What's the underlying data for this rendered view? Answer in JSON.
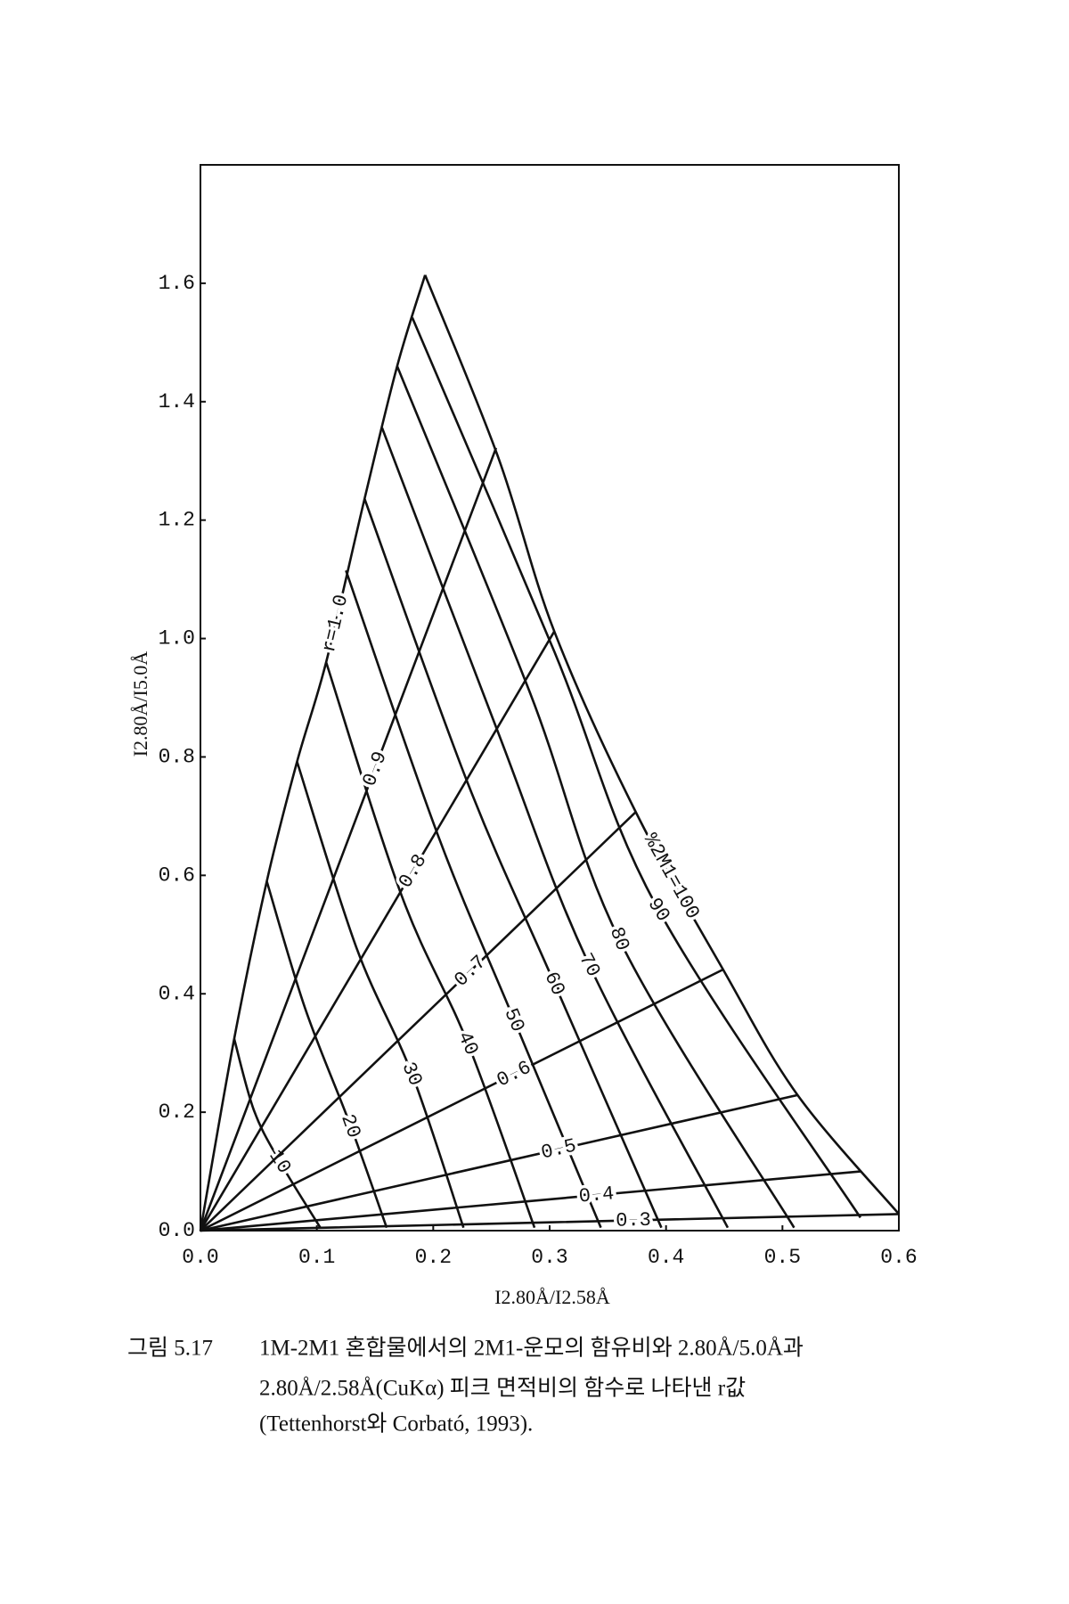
{
  "chart_data": {
    "type": "line",
    "x_label": "I2.80Å/I2.58Å",
    "y_label": "I2.80Å/I5.0Å",
    "xlim": [
      0,
      0.6
    ],
    "ylim": [
      0,
      1.8
    ],
    "xticks": [
      {
        "value": 0,
        "label": "0.0"
      },
      {
        "value": 0.1,
        "label": "0.1"
      },
      {
        "value": 0.2,
        "label": "0.2"
      },
      {
        "value": 0.3,
        "label": "0.3"
      },
      {
        "value": 0.4,
        "label": "0.4"
      },
      {
        "value": 0.5,
        "label": "0.5"
      },
      {
        "value": 0.6,
        "label": "0.6"
      }
    ],
    "yticks": [
      {
        "value": 0,
        "label": "0.0"
      },
      {
        "value": 0.2,
        "label": "0.2"
      },
      {
        "value": 0.4,
        "label": "0.4"
      },
      {
        "value": 0.6,
        "label": "0.6"
      },
      {
        "value": 0.8,
        "label": "0.8"
      },
      {
        "value": 1.0,
        "label": "1.0"
      },
      {
        "value": 1.2,
        "label": "1.2"
      },
      {
        "value": 1.4,
        "label": "1.4"
      },
      {
        "value": 1.6,
        "label": "1.6"
      }
    ],
    "color": "#111111",
    "series": [
      {
        "name": "10",
        "x": [
          0.029,
          0.046,
          0.068,
          0.103
        ],
        "values": [
          0.324,
          0.203,
          0.117,
          0.005
        ]
      },
      {
        "name": "20",
        "x": [
          0.057,
          0.09,
          0.129,
          0.16
        ],
        "values": [
          0.59,
          0.375,
          0.177,
          0.005
        ]
      },
      {
        "name": "30",
        "x": [
          0.083,
          0.134,
          0.182,
          0.226
        ],
        "values": [
          0.792,
          0.478,
          0.263,
          0.005
        ]
      },
      {
        "name": "40",
        "x": [
          0.108,
          0.173,
          0.23,
          0.287
        ],
        "values": [
          0.96,
          0.565,
          0.315,
          0.005
        ]
      },
      {
        "name": "50",
        "x": [
          0.125,
          0.204,
          0.269,
          0.344
        ],
        "values": [
          1.115,
          0.668,
          0.358,
          0.005
        ]
      },
      {
        "name": "60",
        "x": [
          0.141,
          0.23,
          0.304,
          0.396
        ],
        "values": [
          1.236,
          0.754,
          0.418,
          0.005
        ]
      },
      {
        "name": "70",
        "x": [
          0.156,
          0.256,
          0.333,
          0.453
        ],
        "values": [
          1.356,
          0.84,
          0.453,
          0.005
        ]
      },
      {
        "name": "80",
        "x": [
          0.169,
          0.283,
          0.361,
          0.51
        ],
        "values": [
          1.46,
          0.909,
          0.487,
          0.005
        ]
      },
      {
        "name": "90",
        "x": [
          0.182,
          0.304,
          0.392,
          0.567
        ],
        "values": [
          1.542,
          0.978,
          0.547,
          0.022
        ]
      },
      {
        "name": "%2M1=100",
        "x": [
          0.193,
          0.256,
          0.304,
          0.374,
          0.449,
          0.513,
          0.6
        ],
        "values": [
          1.614,
          1.305,
          1.012,
          0.707,
          0.441,
          0.229,
          0.028
        ]
      },
      {
        "name": "0.3",
        "x": [
          0,
          0.6
        ],
        "values": [
          0,
          0.028
        ]
      },
      {
        "name": "0.4",
        "x": [
          0,
          0.567
        ],
        "values": [
          0,
          0.1
        ]
      },
      {
        "name": "0.5",
        "x": [
          0,
          0.513
        ],
        "values": [
          0,
          0.229
        ]
      },
      {
        "name": "0.6",
        "x": [
          0,
          0.449
        ],
        "values": [
          0,
          0.441
        ]
      },
      {
        "name": "0.7",
        "x": [
          0,
          0.374
        ],
        "values": [
          0,
          0.707
        ]
      },
      {
        "name": "0.8",
        "x": [
          0,
          0.304
        ],
        "values": [
          0,
          1.012
        ]
      },
      {
        "name": "0.9",
        "x": [
          0,
          0.254
        ],
        "values": [
          0,
          1.322
        ]
      },
      {
        "name": "r=1.0",
        "x": [
          0,
          0.029,
          0.057,
          0.083,
          0.108,
          0.141,
          0.169,
          0.193
        ],
        "values": [
          0,
          0.324,
          0.59,
          0.792,
          0.96,
          1.236,
          1.46,
          1.614
        ]
      }
    ]
  },
  "caption": {
    "label": "그림 5.17",
    "lines": [
      "1M-2M1 혼합물에서의 2M1-운모의 함유비와 2.80Å/5.0Å과",
      "2.80Å/2.58Å(CuKα) 피크 면적비의 함수로 나타낸 r값",
      "(Tettenhorst와 Corbató, 1993)."
    ]
  }
}
